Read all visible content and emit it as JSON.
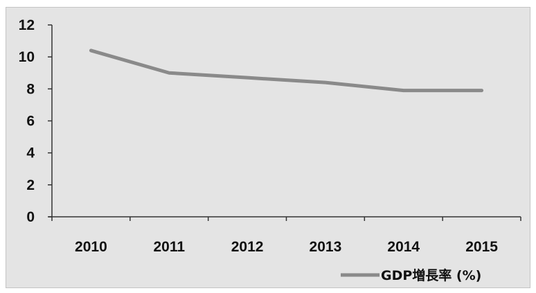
{
  "chart_data": {
    "type": "line",
    "x": [
      "2010",
      "2011",
      "2012",
      "2013",
      "2014",
      "2015"
    ],
    "series": [
      {
        "name": "GDP増長率 (%)",
        "values": [
          10.4,
          9.0,
          8.7,
          8.4,
          7.9,
          7.9
        ],
        "color": "#8a8a8a"
      }
    ],
    "ylim": [
      0,
      12
    ],
    "yticks": [
      "0",
      "2",
      "4",
      "6",
      "8",
      "10",
      "12"
    ],
    "xlabel": "",
    "ylabel": "",
    "title": "",
    "grid": false,
    "legend_position": "bottom-right"
  }
}
